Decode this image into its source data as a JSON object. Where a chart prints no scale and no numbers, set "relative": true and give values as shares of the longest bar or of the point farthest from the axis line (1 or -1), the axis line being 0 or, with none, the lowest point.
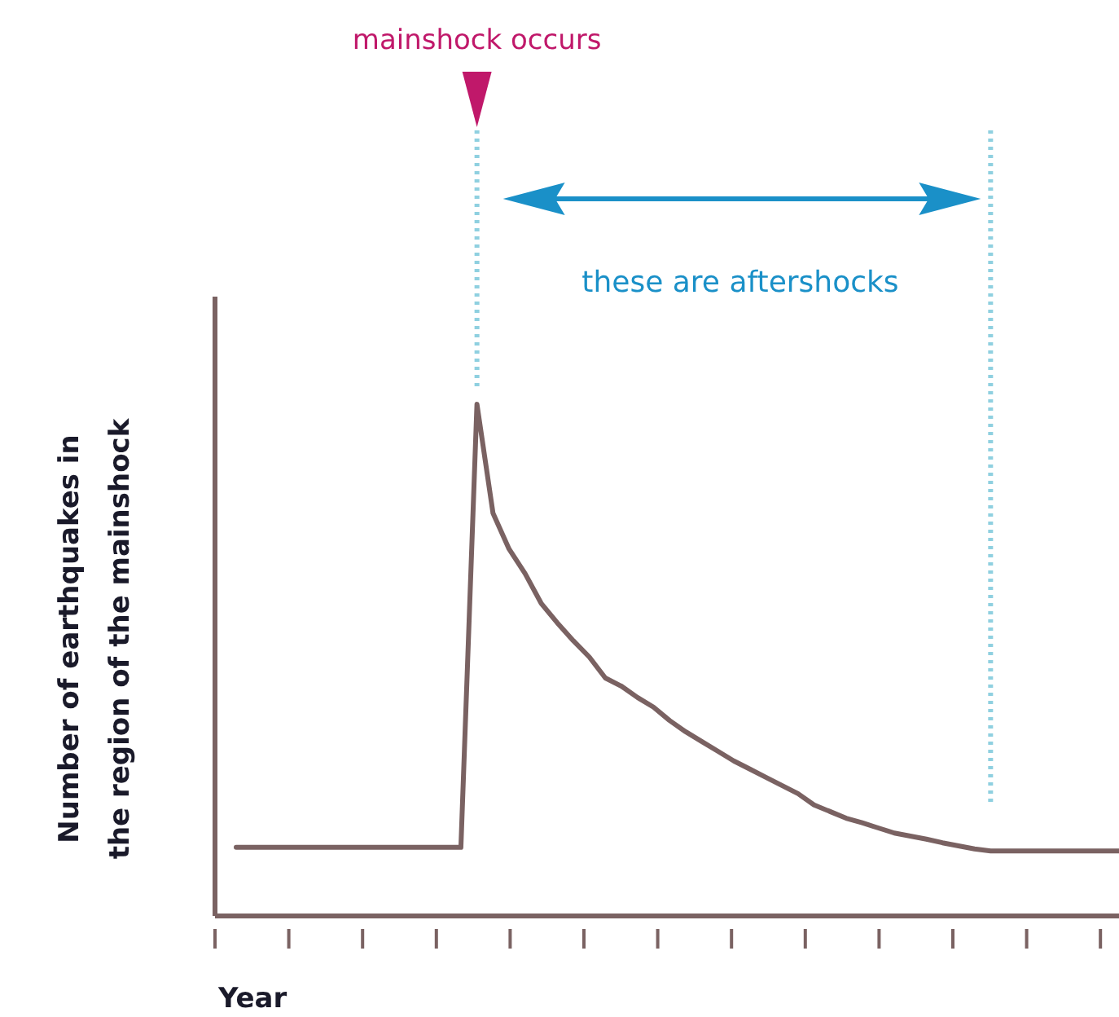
{
  "chart_data": {
    "type": "line",
    "relative": true,
    "xlabel": "Year",
    "ylabel": "Number of earthquakes in the region of the mainshock",
    "categories": [
      null,
      null,
      null,
      null,
      null,
      null,
      null,
      null,
      null,
      null,
      null,
      null,
      null,
      null,
      null,
      null,
      null,
      null,
      null,
      null,
      null,
      null,
      null,
      null,
      null,
      null,
      null,
      null,
      null,
      null,
      null,
      null,
      null,
      null,
      null,
      null,
      null,
      null,
      null,
      null,
      null,
      null,
      null,
      null,
      null,
      null,
      null,
      null,
      null,
      null,
      null,
      null,
      null,
      null,
      null,
      null
    ],
    "series": [
      {
        "color": "#7a6262",
        "values": [
          0.134,
          0.134,
          0.134,
          0.134,
          0.134,
          0.134,
          0.134,
          0.134,
          0.134,
          0.134,
          0.134,
          0.134,
          0.134,
          0.134,
          0.134,
          1.0,
          0.787,
          0.717,
          0.669,
          0.611,
          0.573,
          0.538,
          0.506,
          0.465,
          0.449,
          0.427,
          0.408,
          0.382,
          0.36,
          0.341,
          0.322,
          0.303,
          0.287,
          0.271,
          0.255,
          0.239,
          0.217,
          0.204,
          0.191,
          0.182,
          0.172,
          0.162,
          0.156,
          0.15,
          0.143,
          0.137,
          0.131,
          0.127,
          0.127,
          0.127,
          0.127,
          0.127,
          0.127,
          0.127,
          0.127,
          0.127
        ]
      }
    ],
    "annotations": [
      "mainshock occurs",
      "these are aftershocks"
    ],
    "grid": false,
    "marker": "none",
    "line_style": "solid"
  }
}
